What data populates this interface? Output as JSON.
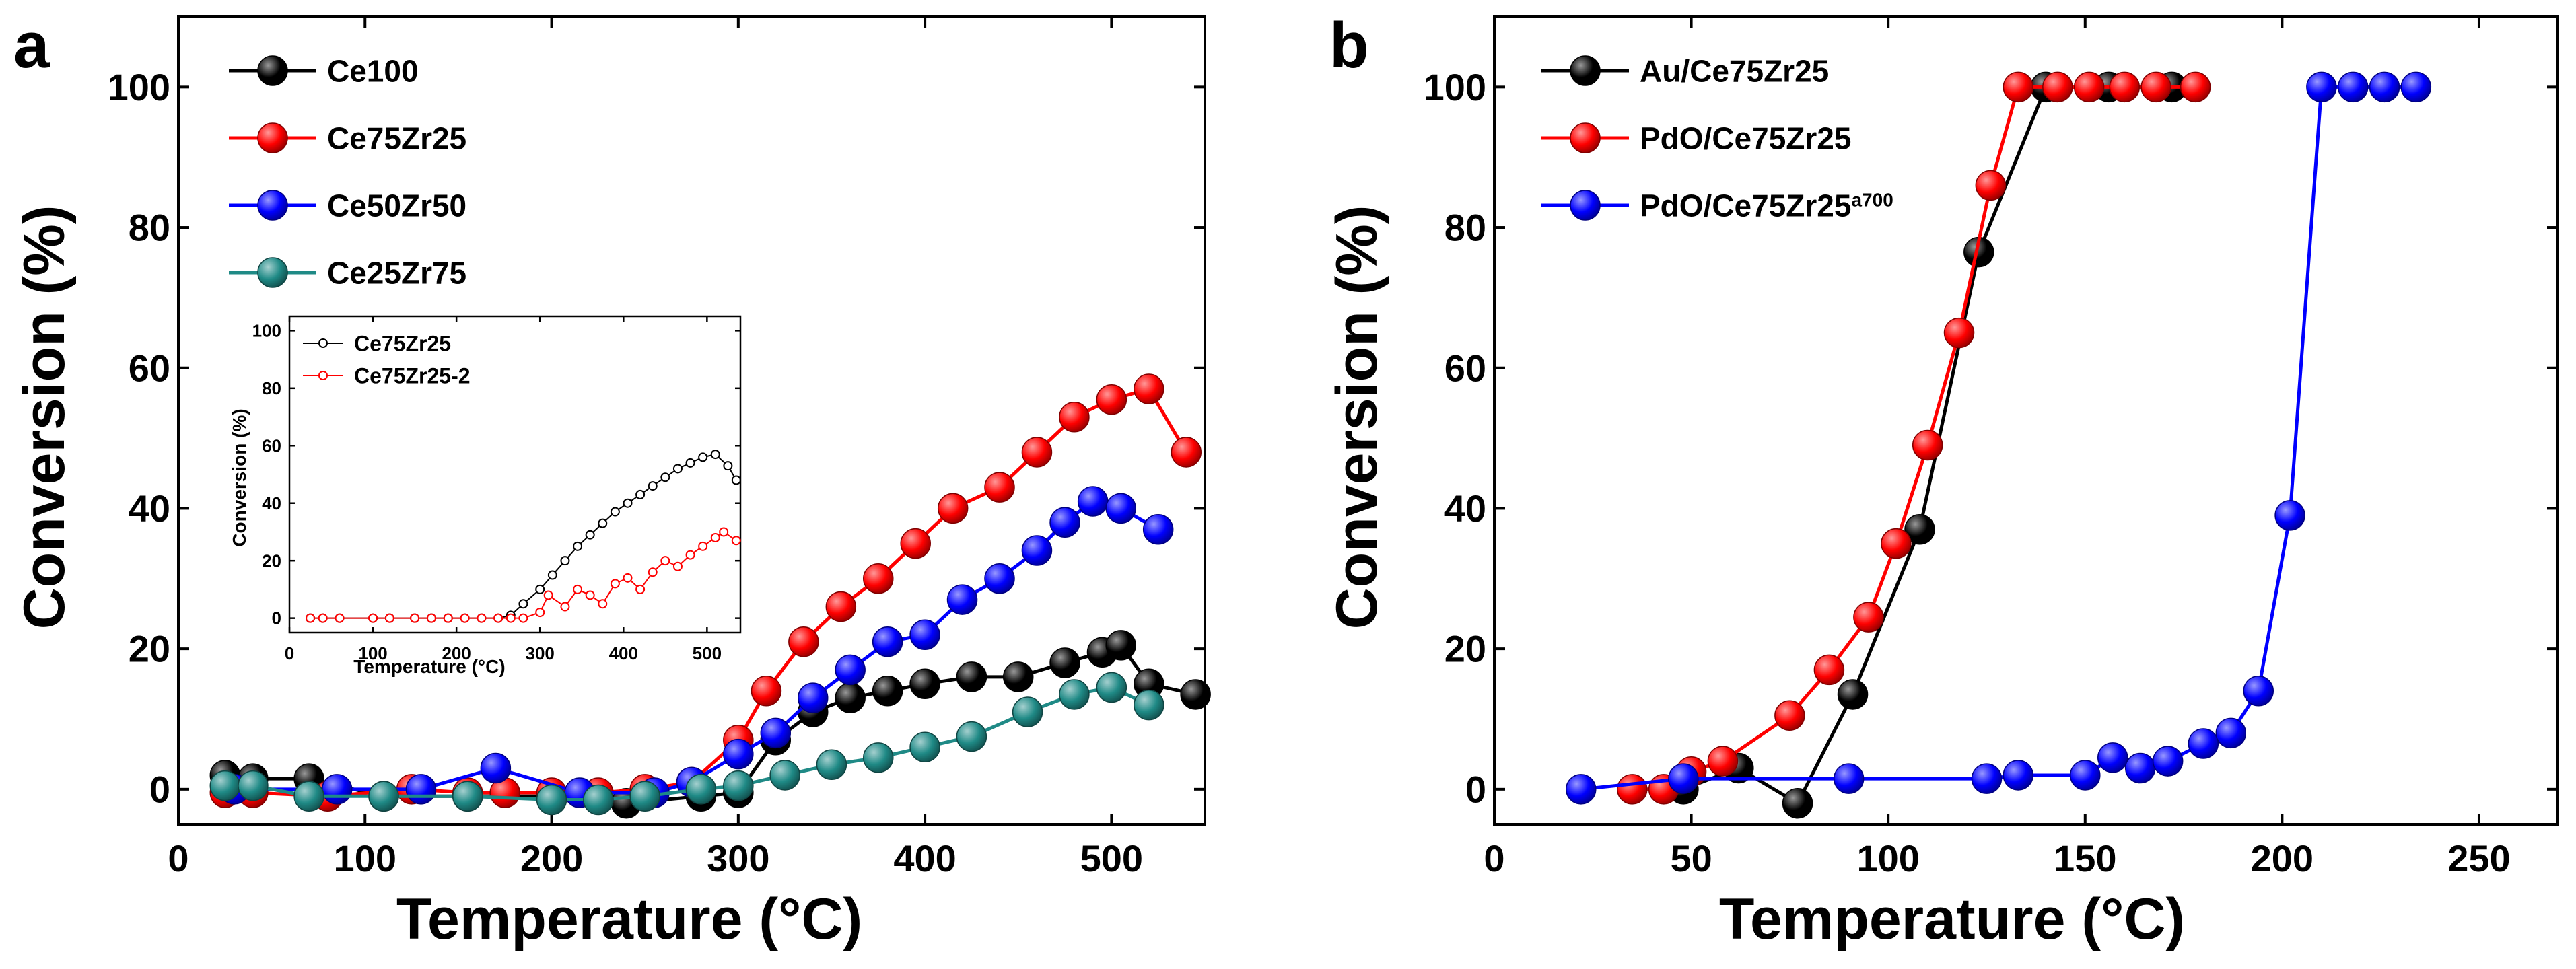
{
  "chart_data": [
    {
      "panel": "a",
      "type": "line",
      "xlabel": "Temperature (°C)",
      "ylabel": "Conversion (%)",
      "xlim": [
        0,
        550
      ],
      "ylim": [
        -5,
        110
      ],
      "xticks": [
        0,
        100,
        200,
        300,
        400,
        500
      ],
      "yticks": [
        0,
        20,
        40,
        60,
        80,
        100
      ],
      "legend_position": "top-left",
      "series": [
        {
          "name": "Ce100",
          "color": "#000000",
          "x": [
            25,
            40,
            70,
            110,
            155,
            200,
            240,
            280,
            300,
            320,
            340,
            360,
            380,
            400,
            425,
            450,
            475,
            495,
            505,
            520,
            545
          ],
          "y": [
            2,
            1.5,
            1.5,
            -1,
            -1,
            -1,
            -2,
            -1,
            -0.5,
            7,
            11,
            13,
            14,
            15,
            16,
            16,
            18,
            19.5,
            20.5,
            15,
            13.5
          ]
        },
        {
          "name": "Ce75Zr25",
          "color": "#ff0000",
          "x": [
            25,
            40,
            80,
            125,
            155,
            175,
            200,
            225,
            250,
            275,
            300,
            315,
            335,
            355,
            375,
            395,
            415,
            440,
            460,
            480,
            500,
            520,
            540
          ],
          "y": [
            -0.5,
            -0.5,
            -1,
            0,
            -0.5,
            -0.5,
            -0.5,
            -0.5,
            0,
            1,
            7,
            14,
            21,
            26,
            30,
            35,
            40,
            43,
            48,
            53,
            55.5,
            57,
            48
          ]
        },
        {
          "name": "Ce50Zr50",
          "color": "#0000ff",
          "x": [
            30,
            85,
            130,
            170,
            215,
            255,
            275,
            300,
            320,
            340,
            360,
            380,
            400,
            420,
            440,
            460,
            475,
            490,
            505,
            525
          ],
          "y": [
            0,
            0,
            0,
            3,
            -0.5,
            -0.5,
            1,
            5,
            8,
            13,
            17,
            21,
            22,
            27,
            30,
            34,
            38,
            41,
            40,
            37
          ]
        },
        {
          "name": "Ce25Zr75",
          "color": "#1f8a86",
          "x": [
            25,
            40,
            70,
            110,
            155,
            200,
            225,
            250,
            280,
            300,
            325,
            350,
            375,
            400,
            425,
            455,
            480,
            500,
            520
          ],
          "y": [
            0.5,
            0.5,
            -1,
            -1,
            -1,
            -1.5,
            -1.5,
            -1,
            0,
            0.5,
            2,
            3.5,
            4.5,
            6,
            7.5,
            11,
            13.5,
            14.5,
            12
          ]
        }
      ],
      "inset": {
        "type": "line",
        "xlabel": "Temperature (°C)",
        "ylabel": "Conversion (%)",
        "xlim": [
          0,
          540
        ],
        "ylim": [
          -5,
          105
        ],
        "xticks": [
          0,
          100,
          200,
          300,
          400,
          500
        ],
        "yticks": [
          0,
          20,
          40,
          60,
          80,
          100
        ],
        "legend_position": "top-left",
        "series": [
          {
            "name": "Ce75Zr25",
            "color": "#000000",
            "x": [
              25,
              40,
              60,
              100,
              120,
              150,
              170,
              190,
              210,
              230,
              250,
              265,
              280,
              300,
              315,
              330,
              345,
              360,
              375,
              390,
              405,
              420,
              435,
              450,
              465,
              480,
              495,
              510,
              525,
              535
            ],
            "y": [
              0,
              0,
              0,
              0,
              0,
              0,
              0,
              0,
              0,
              0,
              0,
              1,
              5,
              10,
              15,
              20,
              25,
              29,
              33,
              37,
              40,
              43,
              46,
              49,
              52,
              54,
              56,
              57,
              53,
              48
            ]
          },
          {
            "name": "Ce75Zr25-2",
            "color": "#ff0000",
            "x": [
              25,
              40,
              60,
              100,
              120,
              150,
              170,
              190,
              210,
              230,
              250,
              265,
              280,
              300,
              310,
              330,
              345,
              360,
              375,
              390,
              405,
              420,
              435,
              450,
              465,
              480,
              495,
              510,
              520,
              535
            ],
            "y": [
              0,
              0,
              0,
              0,
              0,
              0,
              0,
              0,
              0,
              0,
              0,
              0,
              0,
              2,
              8,
              4,
              10,
              8,
              5,
              12,
              14,
              10,
              16,
              20,
              18,
              22,
              25,
              28,
              30,
              27
            ]
          }
        ]
      }
    },
    {
      "panel": "b",
      "type": "line",
      "xlabel": "Temperature (°C)",
      "ylabel": "Conversion (%)",
      "xlim": [
        0,
        270
      ],
      "ylim": [
        -5,
        110
      ],
      "xticks": [
        0,
        50,
        100,
        150,
        200,
        250
      ],
      "yticks": [
        0,
        20,
        40,
        60,
        80,
        100
      ],
      "legend_position": "top-left",
      "series": [
        {
          "name": "Au/Ce75Zr25",
          "color": "#000000",
          "x": [
            48,
            62,
            77,
            91,
            108,
            123,
            140,
            156,
            172
          ],
          "y": [
            0,
            3,
            -2,
            13.5,
            37,
            76.5,
            100,
            100,
            100
          ]
        },
        {
          "name": "PdO/Ce75Zr25",
          "color": "#ff0000",
          "x": [
            35,
            43,
            50,
            58,
            75,
            85,
            95,
            102,
            110,
            118,
            126,
            133,
            143,
            151,
            160,
            168,
            178
          ],
          "y": [
            0,
            0,
            2.5,
            4,
            10.5,
            17,
            24.5,
            35,
            49,
            65,
            86,
            100,
            100,
            100,
            100,
            100,
            100
          ]
        },
        {
          "name": "PdO/Ce75Zr25",
          "sup": "a700",
          "color": "#0000ff",
          "x": [
            22,
            48,
            90,
            125,
            133,
            150,
            157,
            164,
            171,
            180,
            187,
            194,
            202,
            210,
            218,
            226,
            234
          ],
          "y": [
            0,
            1.5,
            1.5,
            1.5,
            2,
            2,
            4.5,
            3,
            4,
            6.5,
            8,
            14,
            39,
            100,
            100,
            100,
            100
          ]
        }
      ]
    }
  ]
}
